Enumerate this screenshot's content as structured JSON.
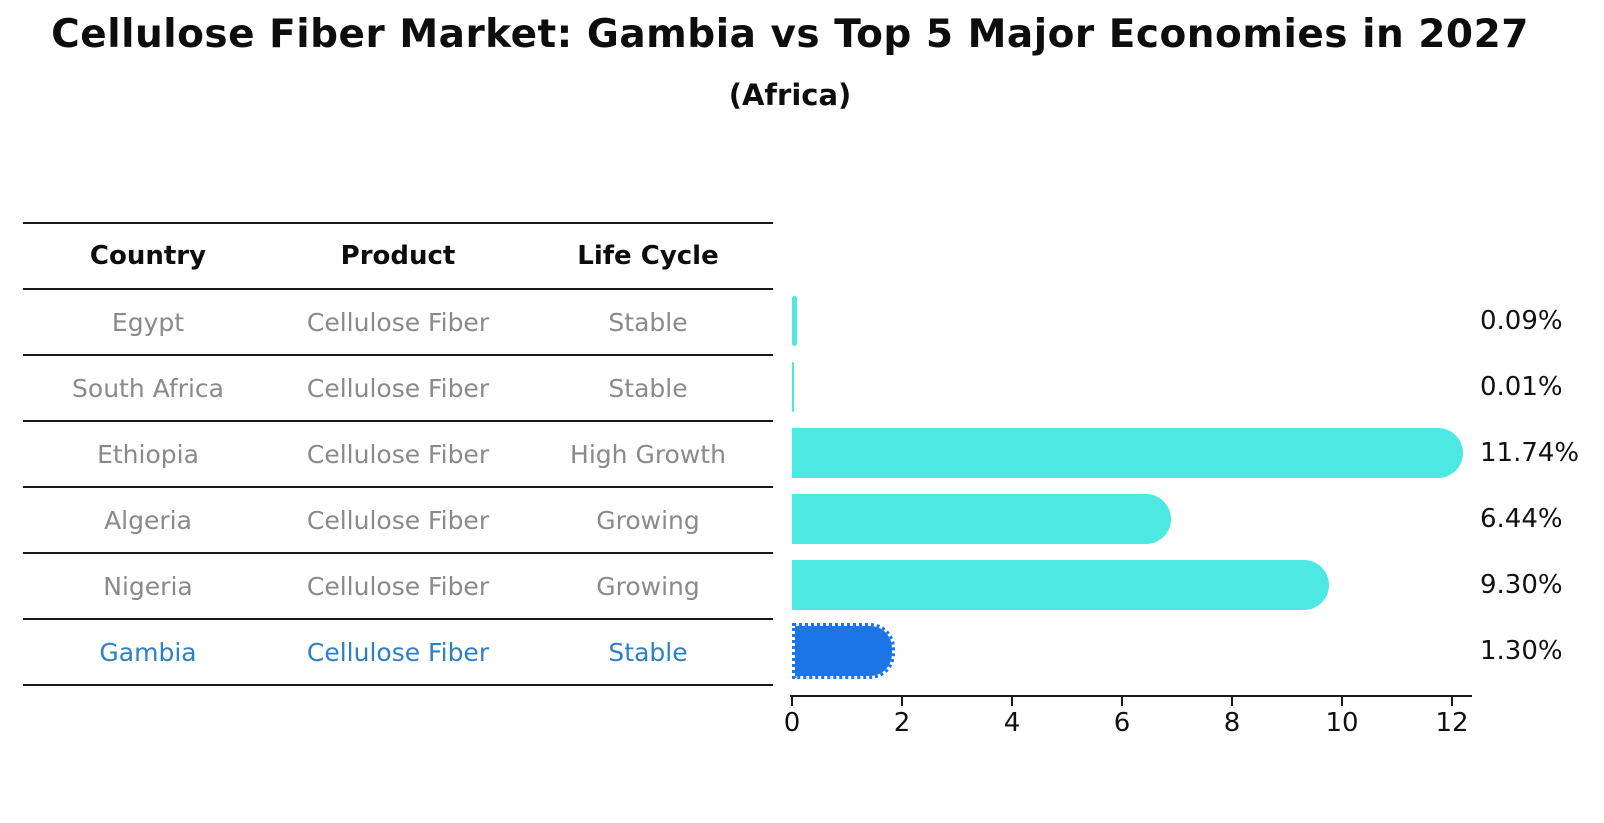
{
  "title": "Cellulose Fiber Market: Gambia vs Top 5 Major Economies in 2027",
  "subtitle": "(Africa)",
  "table": {
    "headers": [
      "Country",
      "Product",
      "Life Cycle"
    ],
    "rows": [
      {
        "country": "Egypt",
        "product": "Cellulose Fiber",
        "life_cycle": "Stable",
        "highlight": false
      },
      {
        "country": "South Africa",
        "product": "Cellulose Fiber",
        "life_cycle": "Stable",
        "highlight": false
      },
      {
        "country": "Ethiopia",
        "product": "Cellulose Fiber",
        "life_cycle": "High Growth",
        "highlight": false
      },
      {
        "country": "Algeria",
        "product": "Cellulose Fiber",
        "life_cycle": "Growing",
        "highlight": false
      },
      {
        "country": "Nigeria",
        "product": "Cellulose Fiber",
        "life_cycle": "Growing",
        "highlight": false
      },
      {
        "country": "Gambia",
        "product": "Cellulose Fiber",
        "life_cycle": "Stable",
        "highlight": true
      }
    ]
  },
  "chart_data": {
    "type": "bar",
    "orientation": "horizontal",
    "title": "Cellulose Fiber Market: Gambia vs Top 5 Major Economies in 2027",
    "subtitle": "(Africa)",
    "categories": [
      "Egypt",
      "South Africa",
      "Ethiopia",
      "Algeria",
      "Nigeria",
      "Gambia"
    ],
    "values": [
      0.09,
      0.01,
      11.74,
      6.44,
      9.3,
      1.3
    ],
    "labels": [
      "0.09%",
      "0.01%",
      "11.74%",
      "6.44%",
      "9.30%",
      "1.30%"
    ],
    "xlim": [
      0,
      12
    ],
    "x_ticks": [
      0,
      2,
      4,
      6,
      8,
      10,
      12
    ],
    "tick_labels": [
      "0",
      "2",
      "4",
      "6",
      "8",
      "10",
      "12"
    ],
    "grid": false,
    "legend": "none",
    "bar_color": "#4de8e1",
    "highlight_color": "#1b75e6",
    "highlight_text_color": "#2e7fc6",
    "highlight_index": 5,
    "highlight_category": "Gambia"
  }
}
